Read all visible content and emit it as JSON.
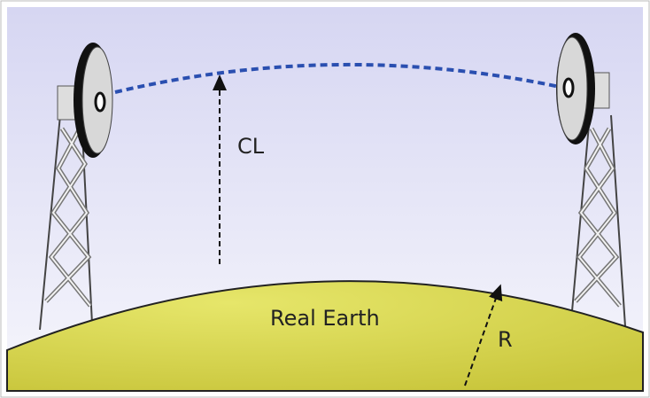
{
  "labels": {
    "clearance": "CL",
    "earth": "Real Earth",
    "radius": "R"
  }
}
